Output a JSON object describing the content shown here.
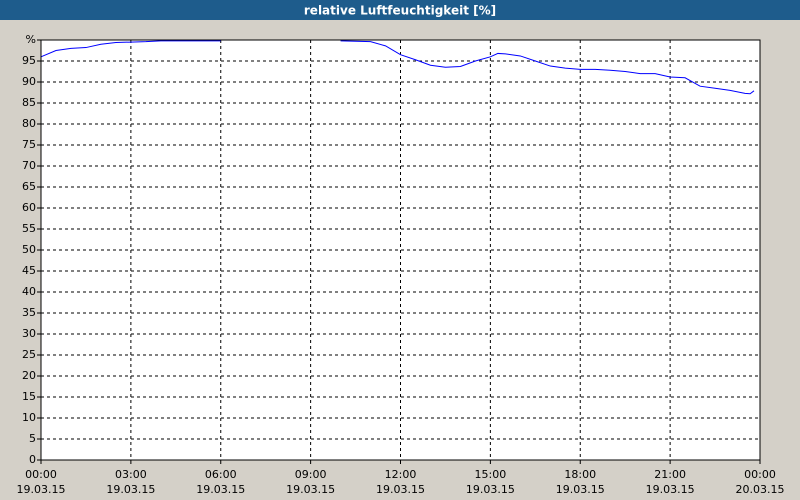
{
  "chart_data": {
    "type": "line",
    "title": "relative Luftfeuchtigkeit [%]",
    "x": [
      0,
      0.5,
      1,
      1.5,
      2,
      2.5,
      3,
      3.5,
      4,
      5,
      6,
      7,
      8,
      9,
      10,
      11,
      11.5,
      12,
      12.5,
      13,
      13.5,
      14,
      14.5,
      15,
      15.25,
      15.5,
      16,
      16.5,
      17,
      17.5,
      18,
      18.5,
      19,
      19.5,
      20,
      20.5,
      21,
      21.5,
      22,
      22.5,
      23,
      23.5,
      23.67,
      23.8
    ],
    "series": [
      {
        "color": "#0000ff",
        "values": [
          96,
          97.5,
          98,
          98.2,
          99,
          99.4,
          99.5,
          99.6,
          99.8,
          99.8,
          99.8,
          null,
          null,
          null,
          99.8,
          99.6,
          98.6,
          96.5,
          95.3,
          94,
          93.5,
          93.7,
          95,
          96,
          96.8,
          96.7,
          96.2,
          95,
          93.8,
          93.3,
          93,
          93,
          92.8,
          92.5,
          92,
          92,
          91.2,
          91,
          89,
          88.5,
          88,
          87.3,
          87.2,
          87.9
        ]
      }
    ],
    "xlim": [
      0,
      24
    ],
    "xticks": [
      {
        "value": 0,
        "label": "00:00"
      },
      {
        "value": 3,
        "label": "03:00"
      },
      {
        "value": 6,
        "label": "06:00"
      },
      {
        "value": 9,
        "label": "09:00"
      },
      {
        "value": 12,
        "label": "12:00"
      },
      {
        "value": 15,
        "label": "15:00"
      },
      {
        "value": 18,
        "label": "18:00"
      },
      {
        "value": 21,
        "label": "21:00"
      },
      {
        "value": 24,
        "label": "00:00"
      }
    ],
    "xtick_dates": [
      "19.03.15",
      "19.03.15",
      "19.03.15",
      "19.03.15",
      "19.03.15",
      "19.03.15",
      "19.03.15",
      "19.03.15",
      "20.03.15"
    ],
    "ylim": [
      0,
      100
    ],
    "yticks": [
      0,
      5,
      10,
      15,
      20,
      25,
      30,
      35,
      40,
      45,
      50,
      55,
      60,
      65,
      70,
      75,
      80,
      85,
      90,
      95,
      {
        "value": 100,
        "label": "%"
      }
    ],
    "grid": true
  }
}
